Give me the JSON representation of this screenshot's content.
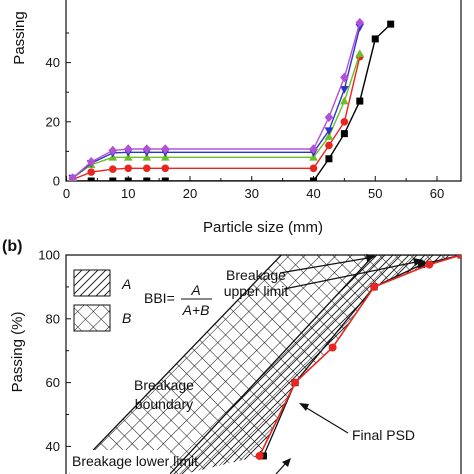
{
  "chart_data": [
    {
      "type": "line",
      "panel": "",
      "xlabel": "Particle size (mm)",
      "ylabel": "Passing",
      "xlim": [
        0,
        65
      ],
      "ylim": [
        0,
        58
      ],
      "xticks": [
        "0",
        "10",
        "20",
        "30",
        "40",
        "50",
        "60"
      ],
      "yticks": [
        "0",
        "20",
        "40"
      ],
      "series": [
        {
          "color": "#000000",
          "marker": "square",
          "x": [
            1,
            4,
            7.5,
            10,
            13,
            16,
            40,
            42.5,
            45,
            47.5,
            50,
            52.5
          ],
          "y": [
            0,
            0,
            0,
            0,
            0,
            0,
            0,
            7.5,
            16,
            27,
            48,
            53
          ]
        },
        {
          "color": "#e8261f",
          "marker": "circle",
          "x": [
            1,
            4,
            7.5,
            10,
            13,
            16,
            40,
            42.5,
            45,
            47.5
          ],
          "y": [
            0.5,
            3,
            4,
            4.3,
            4.3,
            4.3,
            4.3,
            12,
            20,
            42
          ]
        },
        {
          "color": "#6cbf29",
          "marker": "triangle",
          "x": [
            1,
            4,
            7.5,
            10,
            13,
            16,
            40,
            42.5,
            45,
            47.5
          ],
          "y": [
            1,
            5.5,
            8,
            8,
            8,
            8,
            8,
            15,
            27,
            43
          ]
        },
        {
          "color": "#2b35c8",
          "marker": "triangle-down",
          "x": [
            1,
            4,
            7.5,
            10,
            13,
            16,
            40,
            42.5,
            45,
            47.5
          ],
          "y": [
            1,
            6,
            9.5,
            9.7,
            9.7,
            9.7,
            9.7,
            17,
            31,
            52
          ]
        },
        {
          "color": "#b350d6",
          "marker": "diamond",
          "x": [
            1,
            4,
            7.5,
            10,
            13,
            16,
            40,
            42.5,
            45,
            47.5
          ],
          "y": [
            1,
            6.5,
            10.3,
            10.8,
            10.8,
            10.8,
            10.8,
            21.5,
            35,
            53.5
          ]
        }
      ]
    },
    {
      "type": "area",
      "panel": "(b)",
      "ylabel": "Passing (%)",
      "ylim": [
        30,
        100
      ],
      "yticks": [
        "100",
        "80",
        "60",
        "40"
      ],
      "upper_limit": {
        "x": [
          0.253,
          0.78,
          1.0
        ],
        "y": [
          30,
          100,
          100
        ]
      },
      "boundary": {
        "x": [
          0.0,
          0.545
        ],
        "y": [
          30,
          100
        ]
      },
      "psd": {
        "x": [
          0.49,
          0.58,
          0.675,
          0.78,
          0.92,
          1.0
        ],
        "y": [
          37,
          60,
          71,
          90,
          97,
          100
        ]
      },
      "legend": {
        "a": "A",
        "b": "B",
        "bbi_lhs": "BBI=",
        "bbi_num": "A",
        "bbi_den": "A+B"
      },
      "annotations": {
        "upper_line1": "Breakage",
        "upper_line2": "upper limit",
        "boundary_line1": "Breakage",
        "boundary_line2": "boundary",
        "psd": "Final PSD",
        "lower_cut": "Breakage lower limit"
      }
    }
  ]
}
